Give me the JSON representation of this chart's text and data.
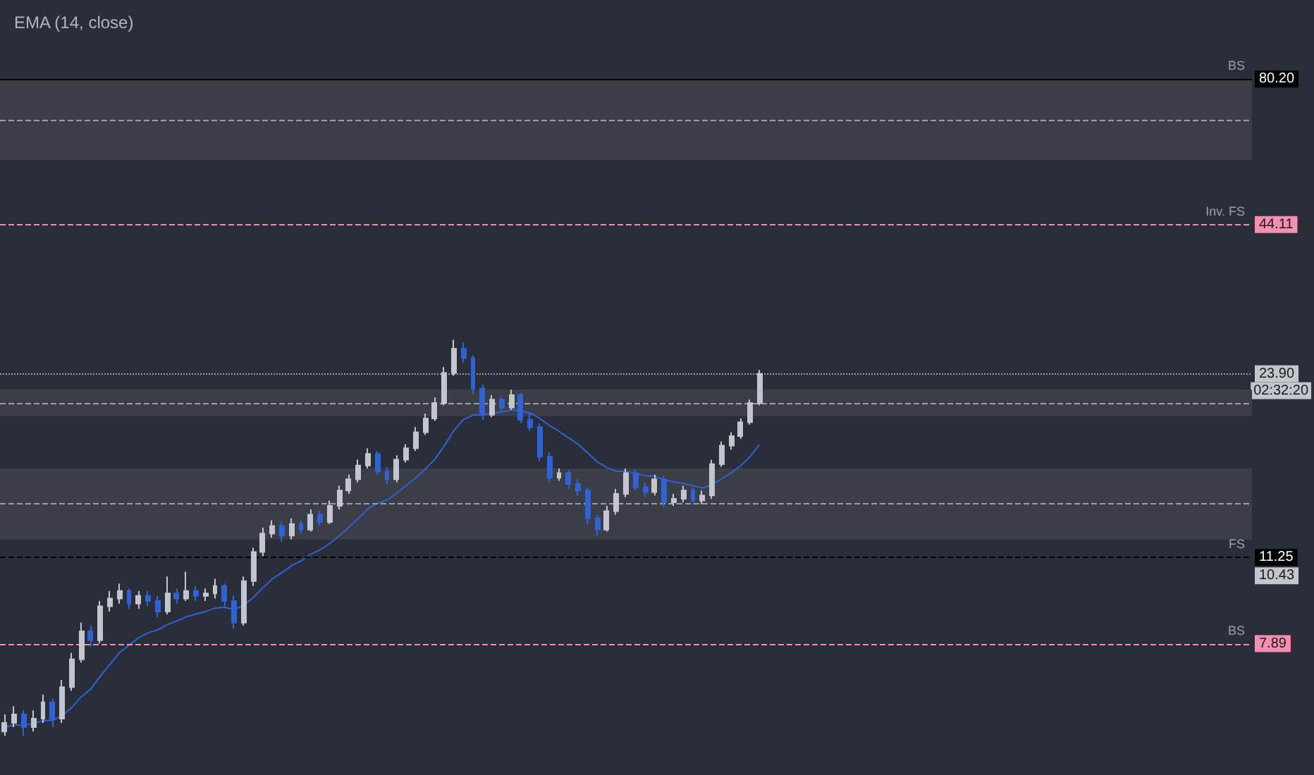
{
  "chart_data": {
    "type": "candlestick",
    "log": "y",
    "grid": false,
    "tick_labels": "y",
    "categories": [
      null,
      null,
      null,
      null,
      null,
      null,
      null,
      null,
      null,
      null,
      null,
      null,
      null,
      null,
      null,
      null,
      null,
      null,
      null,
      null,
      null,
      null,
      null,
      null,
      null,
      null,
      null,
      null,
      null,
      null,
      null,
      null,
      null,
      null,
      null,
      null,
      null,
      null,
      null,
      null,
      null,
      null,
      null,
      null,
      null,
      null,
      null,
      null,
      null,
      null,
      null,
      null,
      null,
      null,
      null,
      null,
      null,
      null,
      null,
      null,
      null,
      null,
      null,
      null,
      null,
      null,
      null,
      null,
      null,
      null,
      null,
      null,
      null,
      null,
      null,
      null,
      null,
      null,
      null,
      null,
      null,
      null,
      null,
      null,
      null,
      null,
      null,
      null,
      null,
      null,
      null,
      null,
      null,
      null,
      null,
      null,
      null,
      null,
      null,
      null,
      null,
      null,
      null,
      null,
      null,
      null,
      null,
      null,
      null,
      null,
      null,
      null,
      null,
      null,
      null,
      null,
      null,
      null,
      null,
      null,
      null,
      null,
      null,
      null,
      null,
      null,
      null,
      null,
      null,
      null,
      null
    ],
    "colors": [
      "#c3c6cc",
      "#c3c6cc",
      "#2f62d6",
      "#c3c6cc",
      "#c3c6cc",
      "#2f62d6",
      "#c3c6cc",
      "#c3c6cc",
      "#c3c6cc",
      "#2f62d6",
      "#c3c6cc",
      "#c3c6cc",
      "#c3c6cc",
      "#2f62d6",
      "#c3c6cc",
      "#2f62d6",
      "#2f62d6",
      "#c3c6cc",
      "#2f62d6",
      "#c3c6cc",
      "#2f62d6",
      "#c3c6cc",
      "#c3c6cc",
      "#2f62d6",
      "#2f62d6",
      "#c3c6cc",
      "#c3c6cc",
      "#c3c6cc",
      "#c3c6cc",
      "#2f62d6",
      "#c3c6cc",
      "#2f62d6",
      "#c3c6cc",
      "#2f62d6",
      "#c3c6cc",
      "#c3c6cc",
      "#c3c6cc",
      "#c3c6cc",
      "#c3c6cc",
      "#2f62d6",
      "#2f62d6",
      "#c3c6cc",
      "#c3c6cc",
      "#c3c6cc",
      "#c3c6cc",
      "#c3c6cc",
      "#c3c6cc",
      "#c3c6cc",
      "#2f62d6",
      "#2f62d6",
      "#2f62d6",
      "#c3c6cc",
      "#2f62d6",
      "#c3c6cc",
      "#2f62d6",
      "#2f62d6",
      "#2f62d6",
      "#2f62d6",
      "#c3c6cc",
      "#2f62d6",
      "#2f62d6",
      "#2f62d6",
      "#2f62d6",
      "#c3c6cc",
      "#c3c6cc",
      "#c3c6cc",
      "#2f62d6",
      "#2f62d6",
      "#c3c6cc",
      "#2f62d6",
      "#c3c6cc",
      "#c3c6cc",
      "#2f62d6",
      "#c3c6cc",
      "#c3c6cc",
      "#c3c6cc",
      "#c3c6cc",
      "#c3c6cc",
      "#c3c6cc",
      "#c3c6cc",
      null,
      null,
      null,
      null,
      null,
      null,
      null,
      null,
      null,
      null,
      null,
      null,
      null,
      null,
      null,
      null,
      null,
      null,
      null,
      null,
      null,
      null,
      null,
      null,
      null,
      null,
      null,
      null,
      null,
      null,
      null,
      null,
      null,
      null,
      null,
      null,
      null,
      null,
      null,
      null,
      null,
      null,
      null,
      null,
      null,
      null,
      null,
      null,
      null,
      null,
      null
    ],
    "ohlc": [
      [
        5.5,
        5.9,
        5.4,
        5.7
      ],
      [
        5.7,
        6.1,
        5.6,
        5.9
      ],
      [
        5.9,
        6.0,
        5.4,
        5.6
      ],
      [
        5.6,
        6.0,
        5.5,
        5.8
      ],
      [
        5.8,
        6.4,
        5.7,
        6.2
      ],
      [
        6.2,
        6.3,
        5.6,
        5.8
      ],
      [
        5.8,
        6.8,
        5.7,
        6.6
      ],
      [
        6.6,
        7.6,
        6.5,
        7.4
      ],
      [
        7.4,
        8.6,
        7.3,
        8.3
      ],
      [
        8.3,
        8.5,
        7.8,
        8.0
      ],
      [
        8.0,
        9.4,
        7.9,
        9.2
      ],
      [
        9.2,
        9.8,
        9.0,
        9.5
      ],
      [
        9.5,
        10.1,
        9.3,
        9.8
      ],
      [
        9.8,
        9.9,
        9.1,
        9.3
      ],
      [
        9.3,
        9.8,
        9.1,
        9.6
      ],
      [
        9.6,
        9.8,
        9.2,
        9.4
      ],
      [
        9.4,
        9.6,
        8.8,
        9.0
      ],
      [
        9.0,
        10.4,
        8.9,
        9.7
      ],
      [
        9.7,
        9.9,
        9.3,
        9.5
      ],
      [
        9.5,
        10.6,
        9.4,
        9.8
      ],
      [
        9.8,
        10.0,
        9.4,
        9.6
      ],
      [
        9.6,
        9.9,
        9.4,
        9.7
      ],
      [
        9.7,
        10.3,
        9.5,
        10.0
      ],
      [
        10.0,
        10.1,
        9.2,
        9.4
      ],
      [
        9.4,
        9.6,
        8.4,
        8.6
      ],
      [
        8.6,
        10.4,
        8.5,
        10.2
      ],
      [
        10.2,
        11.7,
        10.0,
        11.5
      ],
      [
        11.5,
        12.7,
        11.3,
        12.4
      ],
      [
        12.4,
        13.1,
        12.2,
        12.8
      ],
      [
        12.8,
        13.0,
        12.0,
        12.3
      ],
      [
        12.3,
        13.2,
        12.1,
        12.9
      ],
      [
        12.9,
        13.1,
        12.4,
        12.6
      ],
      [
        12.6,
        13.7,
        12.5,
        13.4
      ],
      [
        13.4,
        13.6,
        12.8,
        13.0
      ],
      [
        13.0,
        14.2,
        12.9,
        13.9
      ],
      [
        13.9,
        15.1,
        13.7,
        14.8
      ],
      [
        14.8,
        15.8,
        14.6,
        15.5
      ],
      [
        15.5,
        16.8,
        15.3,
        16.4
      ],
      [
        16.4,
        17.6,
        16.2,
        17.2
      ],
      [
        17.2,
        17.4,
        15.8,
        16.0
      ],
      [
        16.0,
        16.3,
        15.2,
        15.5
      ],
      [
        15.5,
        17.1,
        15.3,
        16.8
      ],
      [
        16.8,
        17.9,
        16.6,
        17.6
      ],
      [
        17.6,
        19.2,
        17.4,
        18.8
      ],
      [
        18.8,
        20.3,
        18.6,
        19.9
      ],
      [
        19.9,
        21.7,
        19.7,
        21.2
      ],
      [
        21.2,
        24.6,
        21.0,
        24.0
      ],
      [
        24.0,
        27.5,
        23.7,
        26.5
      ],
      [
        26.5,
        27.2,
        25.0,
        25.5
      ],
      [
        25.5,
        25.8,
        22.0,
        22.5
      ],
      [
        22.5,
        22.9,
        19.8,
        20.2
      ],
      [
        20.2,
        21.9,
        20.0,
        21.5
      ],
      [
        21.5,
        21.8,
        20.4,
        20.8
      ],
      [
        20.8,
        22.4,
        20.6,
        21.9
      ],
      [
        21.9,
        22.1,
        19.5,
        19.8
      ],
      [
        19.8,
        20.3,
        18.9,
        19.2
      ],
      [
        19.2,
        19.5,
        16.7,
        17.0
      ],
      [
        17.0,
        17.3,
        15.3,
        15.6
      ],
      [
        15.6,
        16.2,
        15.4,
        15.9
      ],
      [
        15.9,
        16.1,
        14.9,
        15.2
      ],
      [
        15.2,
        15.5,
        14.5,
        14.8
      ],
      [
        14.8,
        15.0,
        12.9,
        13.2
      ],
      [
        13.2,
        13.4,
        12.3,
        12.6
      ],
      [
        12.6,
        13.9,
        12.5,
        13.6
      ],
      [
        13.6,
        14.9,
        13.4,
        14.6
      ],
      [
        14.6,
        16.2,
        14.4,
        15.9
      ],
      [
        15.9,
        16.1,
        14.8,
        15.0
      ],
      [
        15.0,
        15.3,
        14.4,
        14.7
      ],
      [
        14.7,
        15.8,
        14.5,
        15.5
      ],
      [
        15.5,
        15.7,
        13.8,
        14.1
      ],
      [
        14.1,
        14.6,
        13.9,
        14.3
      ],
      [
        14.3,
        15.1,
        14.1,
        14.8
      ],
      [
        14.8,
        15.0,
        14.0,
        14.2
      ],
      [
        14.2,
        14.8,
        14.0,
        14.5
      ],
      [
        14.5,
        16.8,
        14.3,
        16.5
      ],
      [
        16.5,
        18.1,
        16.3,
        17.8
      ],
      [
        17.8,
        18.8,
        17.5,
        18.5
      ],
      [
        18.5,
        19.9,
        18.3,
        19.6
      ],
      [
        19.6,
        21.5,
        19.4,
        21.2
      ],
      [
        21.2,
        24.3,
        21.0,
        23.9
      ],
      null,
      null,
      null,
      null,
      null,
      null,
      null,
      null,
      null,
      null,
      null,
      null,
      null,
      null,
      null,
      null,
      null,
      null,
      null,
      null,
      null,
      null,
      null,
      null,
      null,
      null,
      null,
      null,
      null,
      null,
      null,
      null,
      null,
      null,
      null,
      null,
      null,
      null,
      null,
      null,
      null,
      null,
      null,
      null,
      null,
      null,
      null,
      null,
      null,
      null,
      null
    ],
    "series": [
      {
        "type": "line",
        "color": "#2f62d6",
        "values": [
          5.6,
          5.65,
          5.65,
          5.68,
          5.75,
          5.76,
          5.87,
          6.07,
          6.34,
          6.55,
          6.9,
          7.25,
          7.6,
          7.84,
          8.08,
          8.25,
          8.35,
          8.53,
          8.66,
          8.81,
          8.91,
          9.0,
          9.13,
          9.16,
          9.08,
          9.23,
          9.53,
          9.92,
          10.3,
          10.56,
          10.87,
          11.08,
          11.39,
          11.6,
          11.91,
          12.29,
          12.72,
          13.21,
          13.74,
          14.04,
          14.24,
          14.64,
          15.1,
          15.59,
          16.16,
          16.83,
          17.79,
          18.95,
          19.82,
          20.18,
          20.18,
          20.36,
          20.42,
          20.62,
          20.51,
          20.34,
          19.89,
          19.33,
          18.87,
          18.38,
          17.9,
          17.27,
          16.65,
          16.25,
          16.03,
          16.01,
          15.88,
          15.72,
          15.69,
          15.48,
          15.32,
          15.25,
          15.1,
          14.95,
          15.16,
          15.51,
          15.91,
          16.39,
          17.03,
          17.9,
          null,
          null,
          null,
          null,
          null,
          null,
          null,
          null,
          null,
          null,
          null,
          null,
          null,
          null,
          null,
          null,
          null,
          null,
          null,
          null,
          null,
          null,
          null,
          null,
          null,
          null,
          null,
          null,
          null,
          null,
          null,
          null,
          null,
          null,
          null,
          null,
          null,
          null,
          null,
          null,
          null,
          null,
          null,
          null,
          null,
          null,
          null,
          null,
          null,
          null,
          null
        ]
      }
    ],
    "ylim": [
      4.6,
      111
    ],
    "yticks": [
      {
        "value": 80.2,
        "label": "80.20"
      },
      {
        "value": 44.11,
        "label": "44.11"
      },
      {
        "value": 23.9,
        "label": "23.90"
      },
      {
        "value": 11.25,
        "label": "11.25"
      },
      {
        "value": 10.43,
        "label": "10.43"
      },
      {
        "value": 7.89,
        "label": "7.89"
      }
    ],
    "ref_lines": [
      {
        "axis": "y",
        "value": 80.2,
        "label": "BS",
        "color": "#000000",
        "line_style": "solid"
      },
      {
        "axis": "y",
        "value": 67.7,
        "color": "#9aa0a8",
        "line_style": "dashed"
      },
      {
        "axis": "y",
        "value": 44.11,
        "label": "Inv. FS",
        "color": "#f48fb1",
        "line_style": "dashed"
      },
      {
        "axis": "y",
        "value": 23.9,
        "color": "#9aa0a8",
        "line_style": "dotted"
      },
      {
        "axis": "y",
        "value": 21.2,
        "color": "#9aa0a8",
        "line_style": "dashed"
      },
      {
        "axis": "y",
        "value": 14.0,
        "color": "#9aa0a8",
        "line_style": "dashed"
      },
      {
        "axis": "y",
        "value": 11.25,
        "label": "FS",
        "color": "#000000",
        "line_style": "dashed"
      },
      {
        "axis": "y",
        "value": 7.89,
        "label": "BS",
        "color": "#f48fb1",
        "line_style": "dashed"
      }
    ],
    "bands": [
      {
        "axis": "y",
        "from": 57.6,
        "to": 80.2,
        "color": "#3b3e47"
      },
      {
        "axis": "y",
        "from": 20.1,
        "to": 22.4,
        "color": "#3b3e47"
      },
      {
        "axis": "y",
        "from": 12.1,
        "to": 16.2,
        "color": "#3b3e47"
      }
    ],
    "annotations": [
      "EMA (14, close)",
      "02:32:20"
    ]
  }
}
